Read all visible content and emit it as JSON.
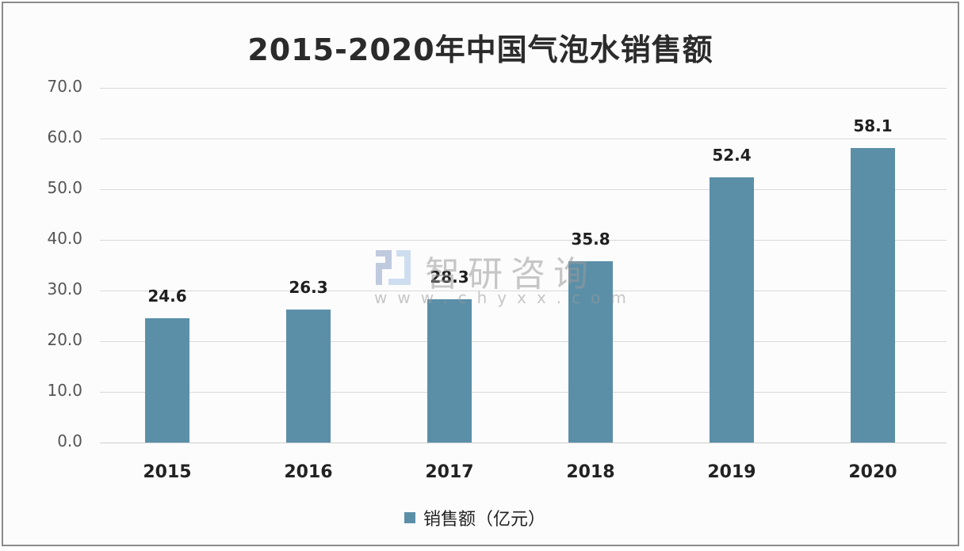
{
  "title": "2015-2020年中国气泡水销售额",
  "legend": {
    "label": "销售额（亿元）",
    "color": "#5b8fa8"
  },
  "watermark": {
    "name": "智研咨询",
    "url": "www.chyxx.com"
  },
  "y_ticks": [
    "70.0",
    "60.0",
    "50.0",
    "40.0",
    "30.0",
    "20.0",
    "10.0",
    "0.0"
  ],
  "bars": [
    {
      "year": "2015",
      "value": "24.6"
    },
    {
      "year": "2016",
      "value": "26.3"
    },
    {
      "year": "2017",
      "value": "28.3"
    },
    {
      "year": "2018",
      "value": "35.8"
    },
    {
      "year": "2019",
      "value": "52.4"
    },
    {
      "year": "2020",
      "value": "58.1"
    }
  ],
  "chart_data": {
    "type": "bar",
    "title": "2015-2020年中国气泡水销售额",
    "categories": [
      "2015",
      "2016",
      "2017",
      "2018",
      "2019",
      "2020"
    ],
    "series": [
      {
        "name": "销售额（亿元）",
        "values": [
          24.6,
          26.3,
          28.3,
          35.8,
          52.4,
          58.1
        ],
        "color": "#5b8fa8"
      }
    ],
    "xlabel": "",
    "ylabel": "",
    "ylim": [
      0,
      70
    ],
    "yticks": [
      0,
      10,
      20,
      30,
      40,
      50,
      60,
      70
    ],
    "grid": true,
    "legend_position": "bottom",
    "data_labels": true
  }
}
